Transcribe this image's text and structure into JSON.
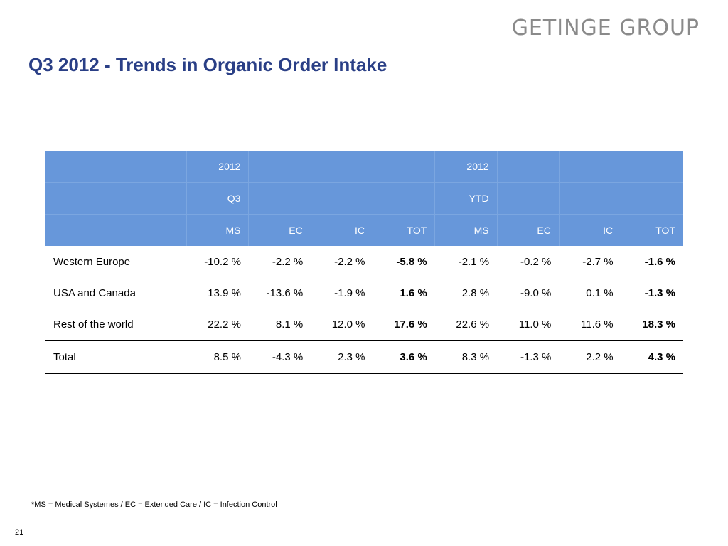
{
  "brand": {
    "logo_text": "GETINGE GROUP"
  },
  "slide": {
    "title": "Q3 2012 - Trends in Organic Order Intake"
  },
  "table": {
    "header_rows": [
      [
        "",
        "2012",
        "",
        "",
        "",
        "2012",
        "",
        "",
        ""
      ],
      [
        "",
        "Q3",
        "",
        "",
        "",
        "YTD",
        "",
        "",
        ""
      ],
      [
        "",
        "MS",
        "EC",
        "IC",
        "TOT",
        "MS",
        "EC",
        "IC",
        "TOT"
      ]
    ],
    "rows": [
      {
        "label": "Western Europe",
        "cells": [
          "-10.2 %",
          "-2.2 %",
          "-2.2 %",
          "-5.8 %",
          "-2.1 %",
          "-0.2 %",
          "-2.7 %",
          "-1.6 %"
        ]
      },
      {
        "label": "USA and Canada",
        "cells": [
          "13.9 %",
          "-13.6 %",
          "-1.9 %",
          "1.6 %",
          "2.8 %",
          "-9.0 %",
          "0.1 %",
          "-1.3 %"
        ]
      },
      {
        "label": "Rest of the world",
        "cells": [
          "22.2 %",
          "8.1 %",
          "12.0 %",
          "17.6 %",
          "22.6 %",
          "11.0 %",
          "11.6 %",
          "18.3 %"
        ]
      },
      {
        "label": "Total",
        "cells": [
          "8.5 %",
          "-4.3 %",
          "2.3 %",
          "3.6 %",
          "8.3 %",
          "-1.3 %",
          "2.2 %",
          "4.3 %"
        ]
      }
    ],
    "bold_columns": [
      3,
      7
    ]
  },
  "footnote": "*MS = Medical Systemes / EC = Extended Care / IC = Infection Control",
  "page_number": "21",
  "colors": {
    "title": "#2a3f86",
    "header_bg": "#6797da",
    "logo": "#8a8a8a"
  }
}
